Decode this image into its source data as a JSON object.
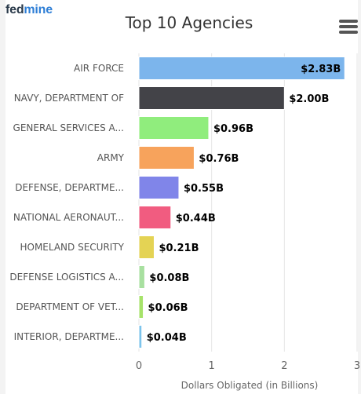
{
  "brand": {
    "part1": "fed",
    "part2": "mine"
  },
  "chart_data": {
    "type": "bar",
    "orientation": "horizontal",
    "title": "Top 10 Agencies",
    "xlabel": "Dollars Obligated (in Billions)",
    "ylabel": "",
    "xlim": [
      0,
      3
    ],
    "x_ticks": [
      0,
      1,
      2,
      3
    ],
    "grid": true,
    "categories": [
      "AIR FORCE",
      "NAVY, DEPARTMENT OF",
      "GENERAL SERVICES A...",
      "ARMY",
      "DEFENSE, DEPARTME...",
      "NATIONAL AERONAUT...",
      "HOMELAND SECURITY",
      "DEFENSE LOGISTICS A...",
      "DEPARTMENT OF VET...",
      "INTERIOR, DEPARTME..."
    ],
    "values": [
      2.83,
      2.0,
      0.96,
      0.76,
      0.55,
      0.44,
      0.21,
      0.08,
      0.06,
      0.04
    ],
    "value_labels": [
      "$2.83B",
      "$2.00B",
      "$0.96B",
      "$0.76B",
      "$0.55B",
      "$0.44B",
      "$0.21B",
      "$0.08B",
      "$0.06B",
      "$0.04B"
    ],
    "colors": [
      "#7cb5ec",
      "#434348",
      "#90ed7d",
      "#f7a35c",
      "#8085e9",
      "#f15c80",
      "#e4d354",
      "#a8e0a0",
      "#a6e36a",
      "#7cc4ec"
    ]
  }
}
